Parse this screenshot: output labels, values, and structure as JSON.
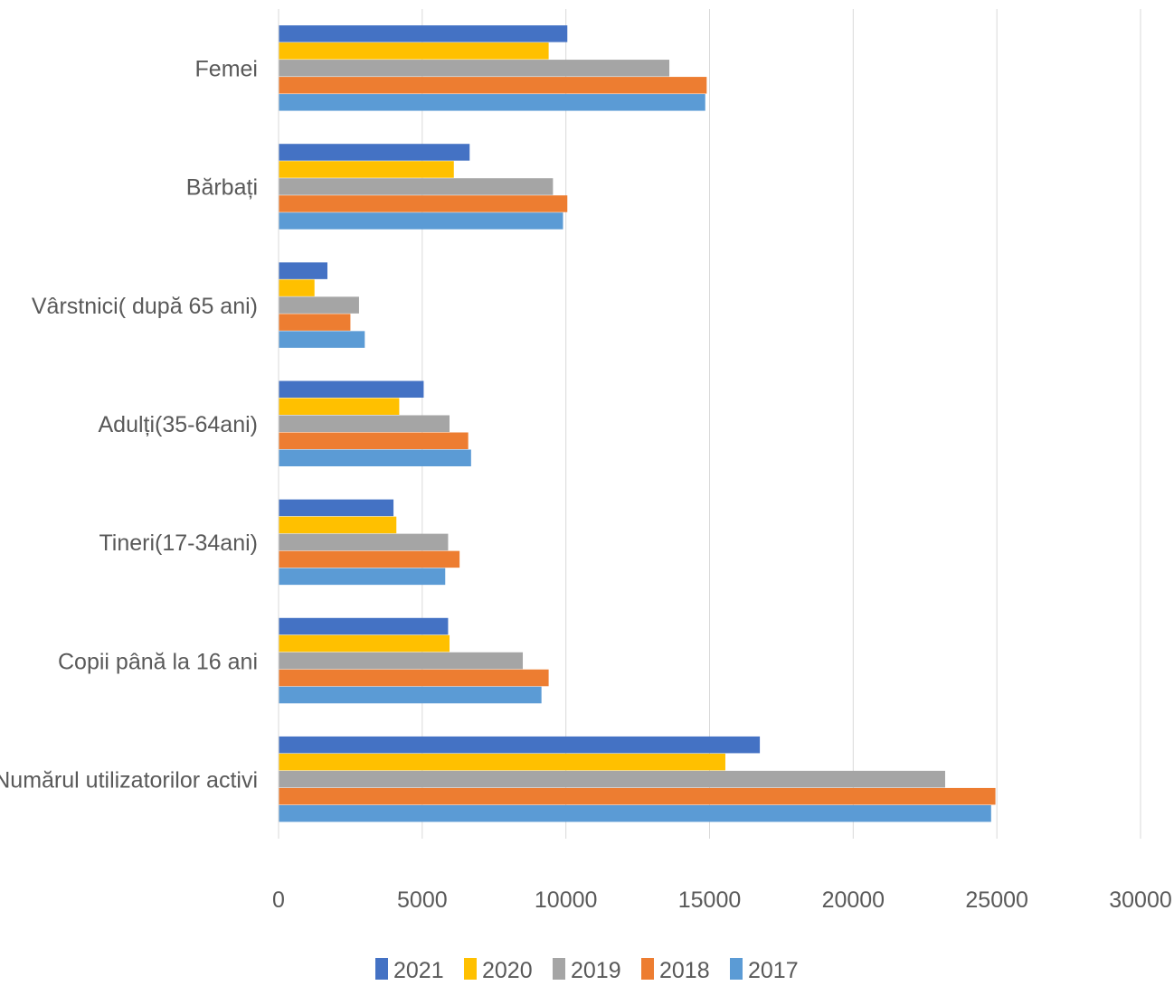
{
  "chart_data": {
    "type": "bar",
    "orientation": "horizontal",
    "categories": [
      "Femei",
      "Bărbați",
      "Vârstnici( după 65 ani)",
      "Adulți(35-64ani)",
      "Tineri(17-34ani)",
      "Copii până la 16 ani",
      "Numărul utilizatorilor activi"
    ],
    "series": [
      {
        "name": "2021",
        "color": "#4472C4",
        "values": [
          10050,
          6650,
          1700,
          5050,
          4000,
          5900,
          16750
        ]
      },
      {
        "name": "2020",
        "color": "#FFC000",
        "values": [
          9400,
          6100,
          1250,
          4200,
          4100,
          5950,
          15550
        ]
      },
      {
        "name": "2019",
        "color": "#A5A5A5",
        "values": [
          13600,
          9550,
          2800,
          5950,
          5900,
          8500,
          23200
        ]
      },
      {
        "name": "2018",
        "color": "#ED7D31",
        "values": [
          14900,
          10050,
          2500,
          6600,
          6300,
          9400,
          24950
        ]
      },
      {
        "name": "2017",
        "color": "#5B9BD5",
        "values": [
          14850,
          9900,
          3000,
          6700,
          5800,
          9150,
          24800
        ]
      }
    ],
    "xlim": [
      0,
      30000
    ],
    "xticks": [
      "0",
      "5000",
      "10000",
      "15000",
      "20000",
      "25000",
      "30000"
    ],
    "grid": true,
    "legend": "bottom"
  }
}
